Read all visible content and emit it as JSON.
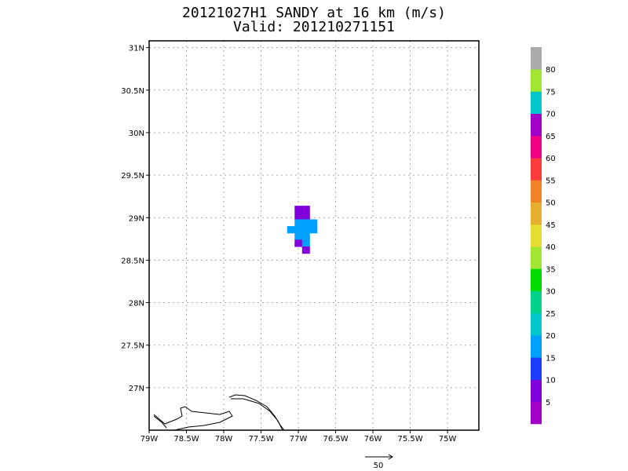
{
  "title": "20121027H1 SANDY at 16 km (m/s)",
  "subtitle": "Valid: 201210271151",
  "map": {
    "xlim": [
      -79,
      -74.58
    ],
    "ylim": [
      26.5,
      31.08
    ],
    "xticks": [
      {
        "value": -79,
        "label": "79W"
      },
      {
        "value": -78.5,
        "label": "78.5W"
      },
      {
        "value": -78,
        "label": "78W"
      },
      {
        "value": -77.5,
        "label": "77.5W"
      },
      {
        "value": -77,
        "label": "77W"
      },
      {
        "value": -76.5,
        "label": "76.5W"
      },
      {
        "value": -76,
        "label": "76W"
      },
      {
        "value": -75.5,
        "label": "75.5W"
      },
      {
        "value": -75,
        "label": "75W"
      }
    ],
    "yticks": [
      {
        "value": 27,
        "label": "27N"
      },
      {
        "value": 27.5,
        "label": "27.5N"
      },
      {
        "value": 28,
        "label": "28N"
      },
      {
        "value": 28.5,
        "label": "28.5N"
      },
      {
        "value": 29,
        "label": "29N"
      },
      {
        "value": 29.5,
        "label": "29.5N"
      },
      {
        "value": 30,
        "label": "30N"
      },
      {
        "value": 30.5,
        "label": "30.5N"
      },
      {
        "value": 31,
        "label": "31N"
      }
    ],
    "grid": true,
    "cells": [
      {
        "lon": -77.0,
        "lat": 29.1,
        "value": 8
      },
      {
        "lon": -76.9,
        "lat": 29.1,
        "value": 8
      },
      {
        "lon": -77.0,
        "lat": 29.02,
        "value": 8
      },
      {
        "lon": -76.9,
        "lat": 29.02,
        "value": 8
      },
      {
        "lon": -77.0,
        "lat": 28.94,
        "value": 17
      },
      {
        "lon": -76.9,
        "lat": 28.94,
        "value": 17
      },
      {
        "lon": -76.8,
        "lat": 28.94,
        "value": 17
      },
      {
        "lon": -77.1,
        "lat": 28.86,
        "value": 17
      },
      {
        "lon": -77.0,
        "lat": 28.86,
        "value": 17
      },
      {
        "lon": -76.9,
        "lat": 28.86,
        "value": 17
      },
      {
        "lon": -76.8,
        "lat": 28.86,
        "value": 17
      },
      {
        "lon": -77.0,
        "lat": 28.78,
        "value": 17
      },
      {
        "lon": -76.9,
        "lat": 28.78,
        "value": 17
      },
      {
        "lon": -77.0,
        "lat": 28.7,
        "value": 8
      },
      {
        "lon": -76.9,
        "lat": 28.7,
        "value": 17
      },
      {
        "lon": -76.9,
        "lat": 28.62,
        "value": 8
      }
    ]
  },
  "colorbar": {
    "levels": [
      5,
      10,
      15,
      20,
      25,
      30,
      35,
      40,
      45,
      50,
      55,
      60,
      65,
      70,
      75,
      80
    ],
    "colors": [
      "#a000c8",
      "#8200dc",
      "#1e3cff",
      "#00a0ff",
      "#00c8c8",
      "#00d28c",
      "#00dc00",
      "#a0e632",
      "#e6dc32",
      "#e6af2d",
      "#f08228",
      "#fa3c3c",
      "#f00082",
      "#a000c8",
      "#00c8c8",
      "#a0e632",
      "#aaaaaa"
    ]
  },
  "vector_scale": {
    "value": 50
  }
}
